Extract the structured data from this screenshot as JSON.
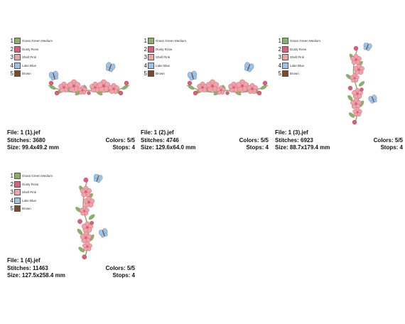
{
  "thread_colors": [
    {
      "num": "1",
      "name": "Grass Green Medium",
      "hex": "#8ab06a"
    },
    {
      "num": "2",
      "name": "Dusty Rose",
      "hex": "#d8607a"
    },
    {
      "num": "3",
      "name": "Shell Pink",
      "hex": "#f0a2a8"
    },
    {
      "num": "4",
      "name": "Lake Blue",
      "hex": "#9cc4e8"
    },
    {
      "num": "5",
      "name": "Brown",
      "hex": "#7a4a2a"
    }
  ],
  "designs": [
    {
      "file": "File: 1 (1).jef",
      "stitches": "Stitches: 3680",
      "size": "Size: 99.4x49.2 mm",
      "colors": "Colors: 5/5",
      "stops": "Stops: 4"
    },
    {
      "file": "File: 1 (2).jef",
      "stitches": "Stitches: 4746",
      "size": "Size: 129.6x64.0 mm",
      "colors": "Colors: 5/5",
      "stops": "Stops: 4"
    },
    {
      "file": "File: 1 (3).jef",
      "stitches": "Stitches: 6923",
      "size": "Size: 88.7x179.4 mm",
      "colors": "Colors: 5/5",
      "stops": "Stops: 4"
    },
    {
      "file": "File: 1 (4).jef",
      "stitches": "Stitches: 11463",
      "size": "Size: 127.5x258.4 mm",
      "colors": "Colors: 5/5",
      "stops": "Stops: 4"
    }
  ]
}
